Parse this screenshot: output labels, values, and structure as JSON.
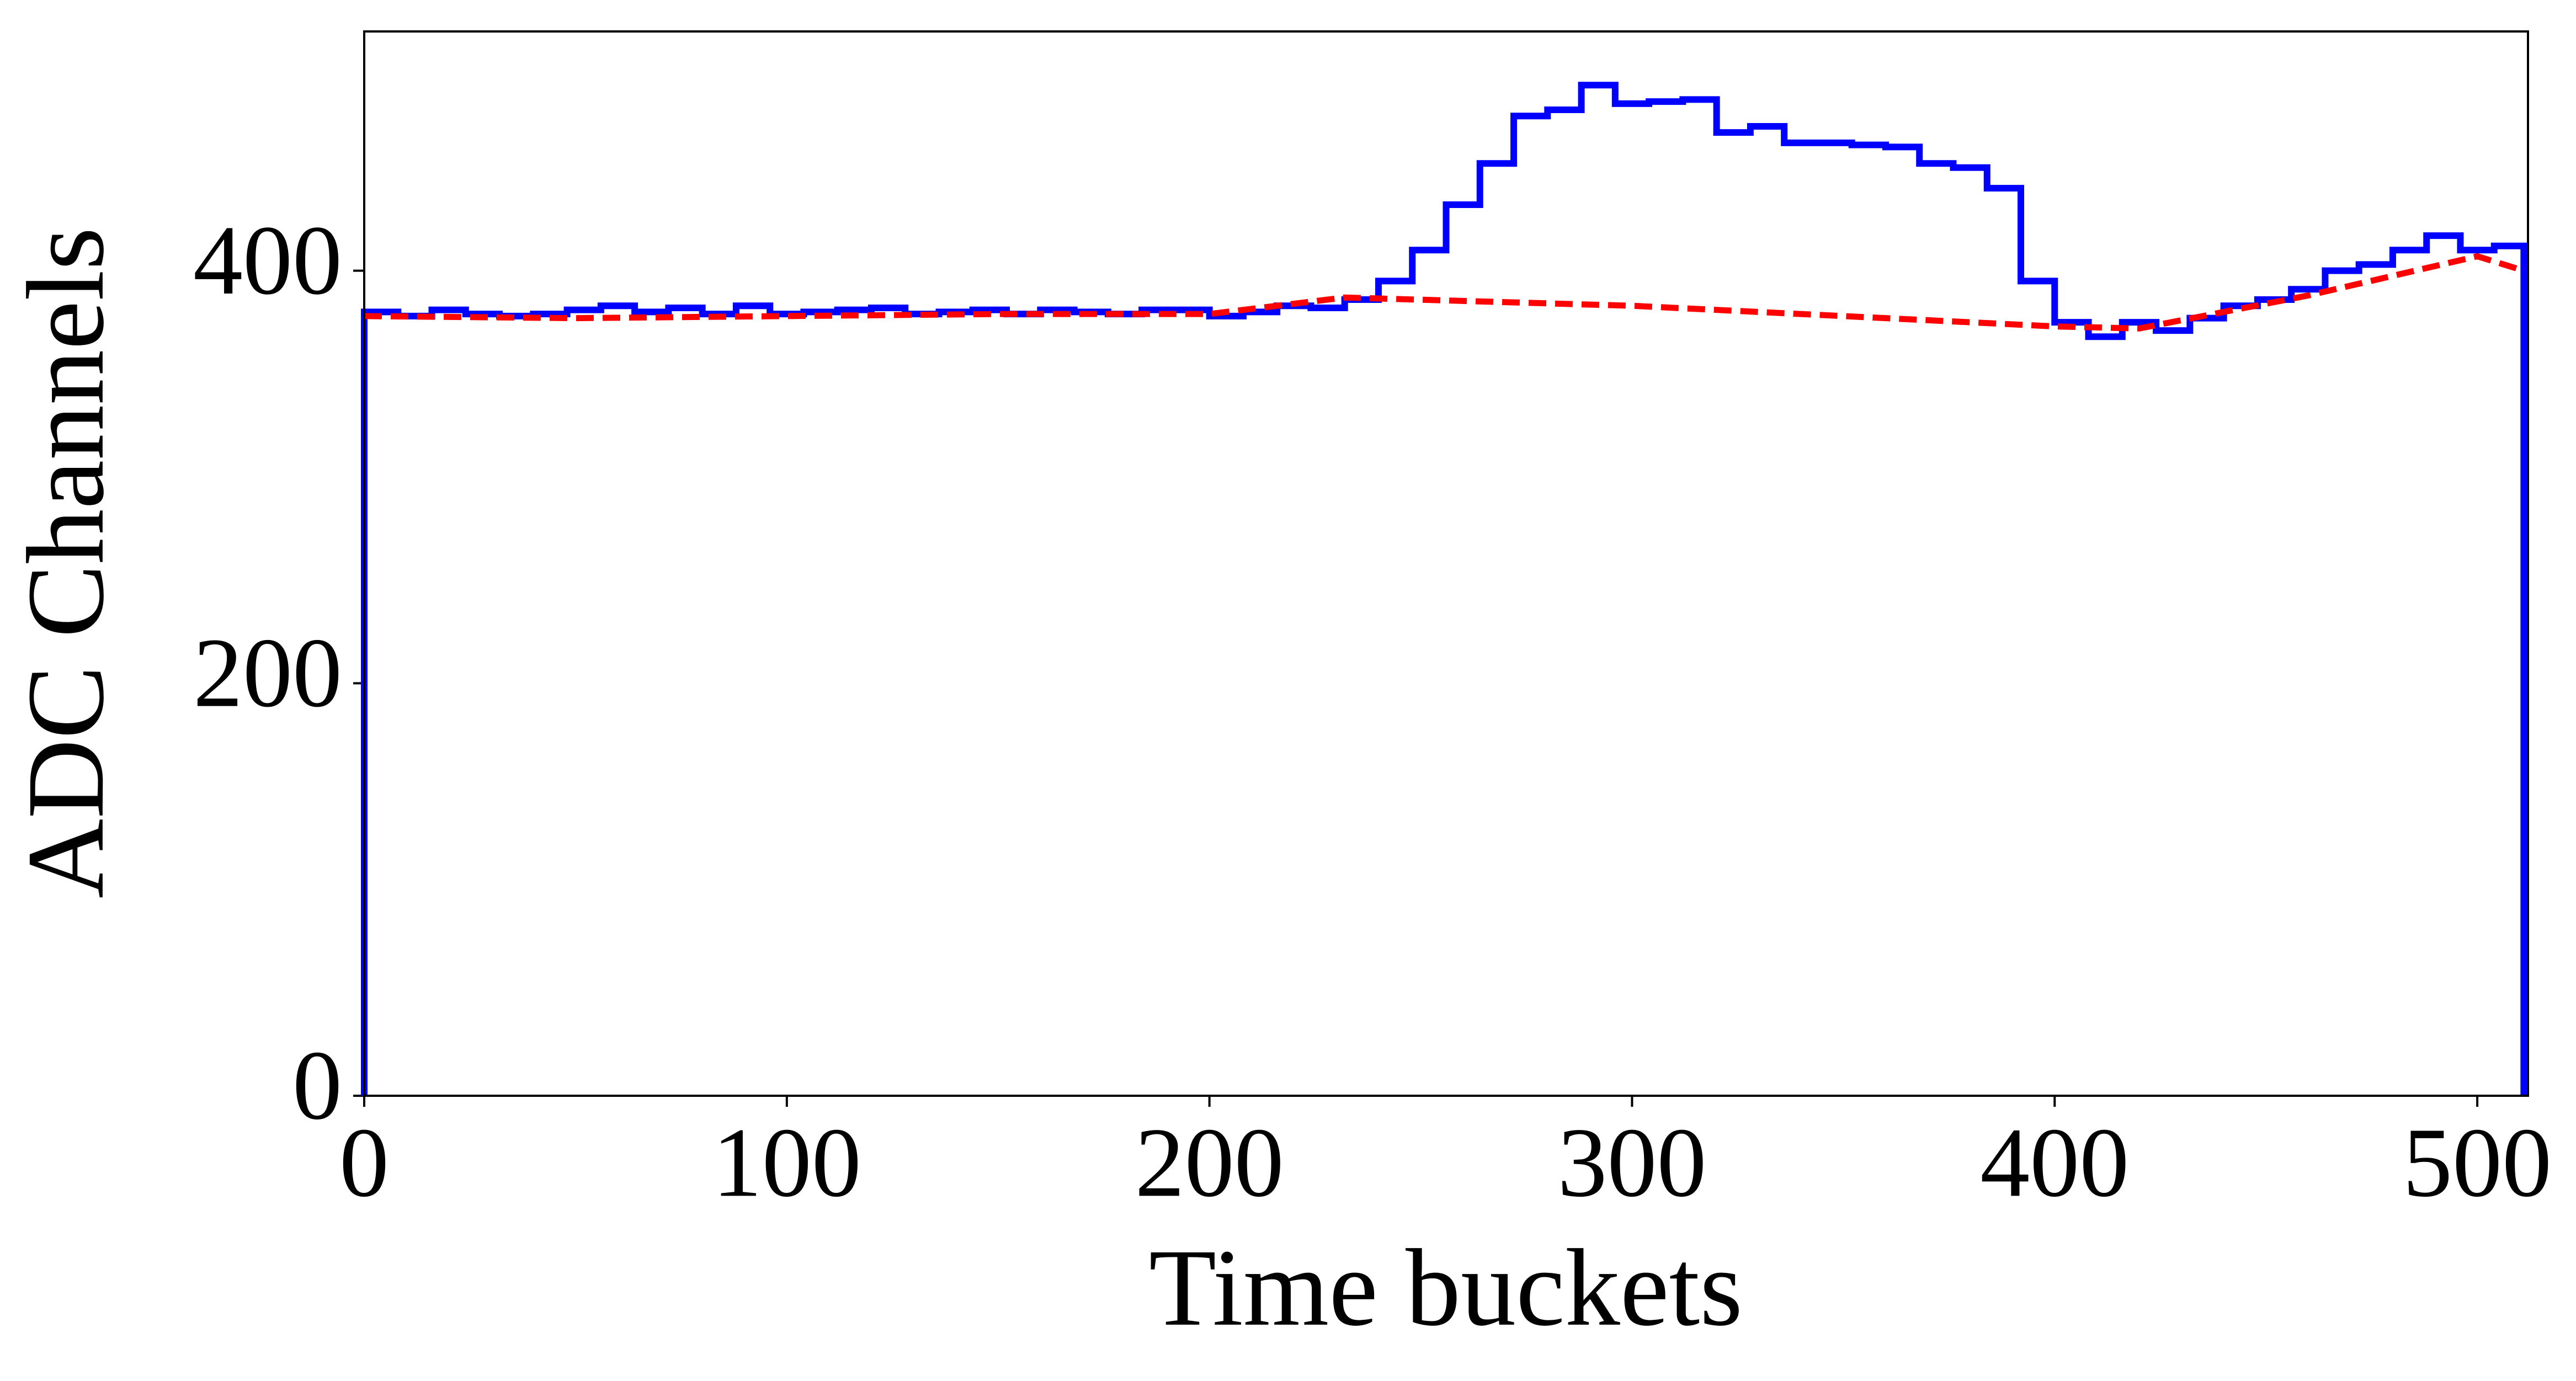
{
  "chart_data": {
    "type": "line",
    "xlabel": "Time buckets",
    "ylabel": "ADC Channels",
    "xlim": [
      0,
      512
    ],
    "ylim": [
      0,
      516
    ],
    "xticks": [
      0,
      100,
      200,
      300,
      400,
      500
    ],
    "yticks": [
      0,
      200,
      400
    ],
    "grid": false,
    "series": [
      {
        "color": "#0000ff",
        "style": "steps",
        "x": [
          0,
          0,
          8,
          16,
          24,
          32,
          40,
          48,
          56,
          64,
          72,
          80,
          88,
          96,
          104,
          112,
          120,
          128,
          136,
          144,
          152,
          160,
          168,
          176,
          184,
          192,
          200,
          208,
          216,
          224,
          232,
          240,
          248,
          256,
          264,
          272,
          280,
          288,
          296,
          304,
          312,
          320,
          328,
          336,
          344,
          352,
          360,
          368,
          376,
          384,
          392,
          400,
          408,
          416,
          424,
          432,
          440,
          448,
          456,
          464,
          472,
          480,
          488,
          496,
          504,
          511,
          511
        ],
        "values": [
          0,
          380,
          378,
          381,
          379,
          378,
          379,
          381,
          383,
          380,
          382,
          379,
          383,
          379,
          380,
          381,
          382,
          379,
          380,
          381,
          379,
          381,
          380,
          379,
          381,
          381,
          378,
          380,
          383,
          382,
          386,
          395,
          410,
          432,
          452,
          475,
          478,
          490,
          481,
          482,
          483,
          467,
          470,
          462,
          462,
          461,
          460,
          452,
          450,
          440,
          395,
          375,
          368,
          375,
          371,
          377,
          383,
          386,
          391,
          400,
          403,
          410,
          417,
          410,
          412,
          400,
          0
        ]
      },
      {
        "color": "#ff0000",
        "style": "dashed",
        "x": [
          0,
          50,
          100,
          150,
          200,
          232,
          300,
          400,
          420,
          460,
          500,
          511
        ],
        "values": [
          378,
          377,
          378,
          379,
          379,
          387,
          383,
          373,
          372,
          388,
          407,
          400
        ]
      }
    ]
  }
}
